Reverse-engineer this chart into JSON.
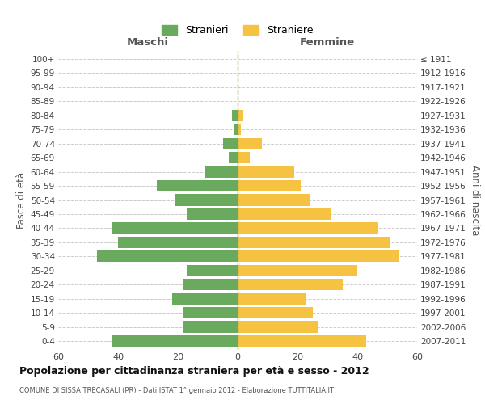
{
  "age_groups": [
    "0-4",
    "5-9",
    "10-14",
    "15-19",
    "20-24",
    "25-29",
    "30-34",
    "35-39",
    "40-44",
    "45-49",
    "50-54",
    "55-59",
    "60-64",
    "65-69",
    "70-74",
    "75-79",
    "80-84",
    "85-89",
    "90-94",
    "95-99",
    "100+"
  ],
  "birth_years": [
    "2007-2011",
    "2002-2006",
    "1997-2001",
    "1992-1996",
    "1987-1991",
    "1982-1986",
    "1977-1981",
    "1972-1976",
    "1967-1971",
    "1962-1966",
    "1957-1961",
    "1952-1956",
    "1947-1951",
    "1942-1946",
    "1937-1941",
    "1932-1936",
    "1927-1931",
    "1922-1926",
    "1917-1921",
    "1912-1916",
    "≤ 1911"
  ],
  "males": [
    42,
    18,
    18,
    22,
    18,
    17,
    47,
    40,
    42,
    17,
    21,
    27,
    11,
    3,
    5,
    1,
    2,
    0,
    0,
    0,
    0
  ],
  "females": [
    43,
    27,
    25,
    23,
    35,
    40,
    54,
    51,
    47,
    31,
    24,
    21,
    19,
    4,
    8,
    1,
    2,
    0,
    0,
    0,
    0
  ],
  "male_color": "#6aaa5f",
  "female_color": "#f5c242",
  "title": "Popolazione per cittadinanza straniera per età e sesso - 2012",
  "subtitle": "COMUNE DI SISSA TRECASALI (PR) - Dati ISTAT 1° gennaio 2012 - Elaborazione TUTTITALIA.IT",
  "xlabel_left": "Maschi",
  "xlabel_right": "Femmine",
  "ylabel_left": "Fasce di età",
  "ylabel_right": "Anni di nascita",
  "legend_stranieri": "Stranieri",
  "legend_straniere": "Straniere",
  "xlim": 60,
  "background_color": "#ffffff",
  "bar_height": 0.82,
  "grid_color": "#cccccc"
}
